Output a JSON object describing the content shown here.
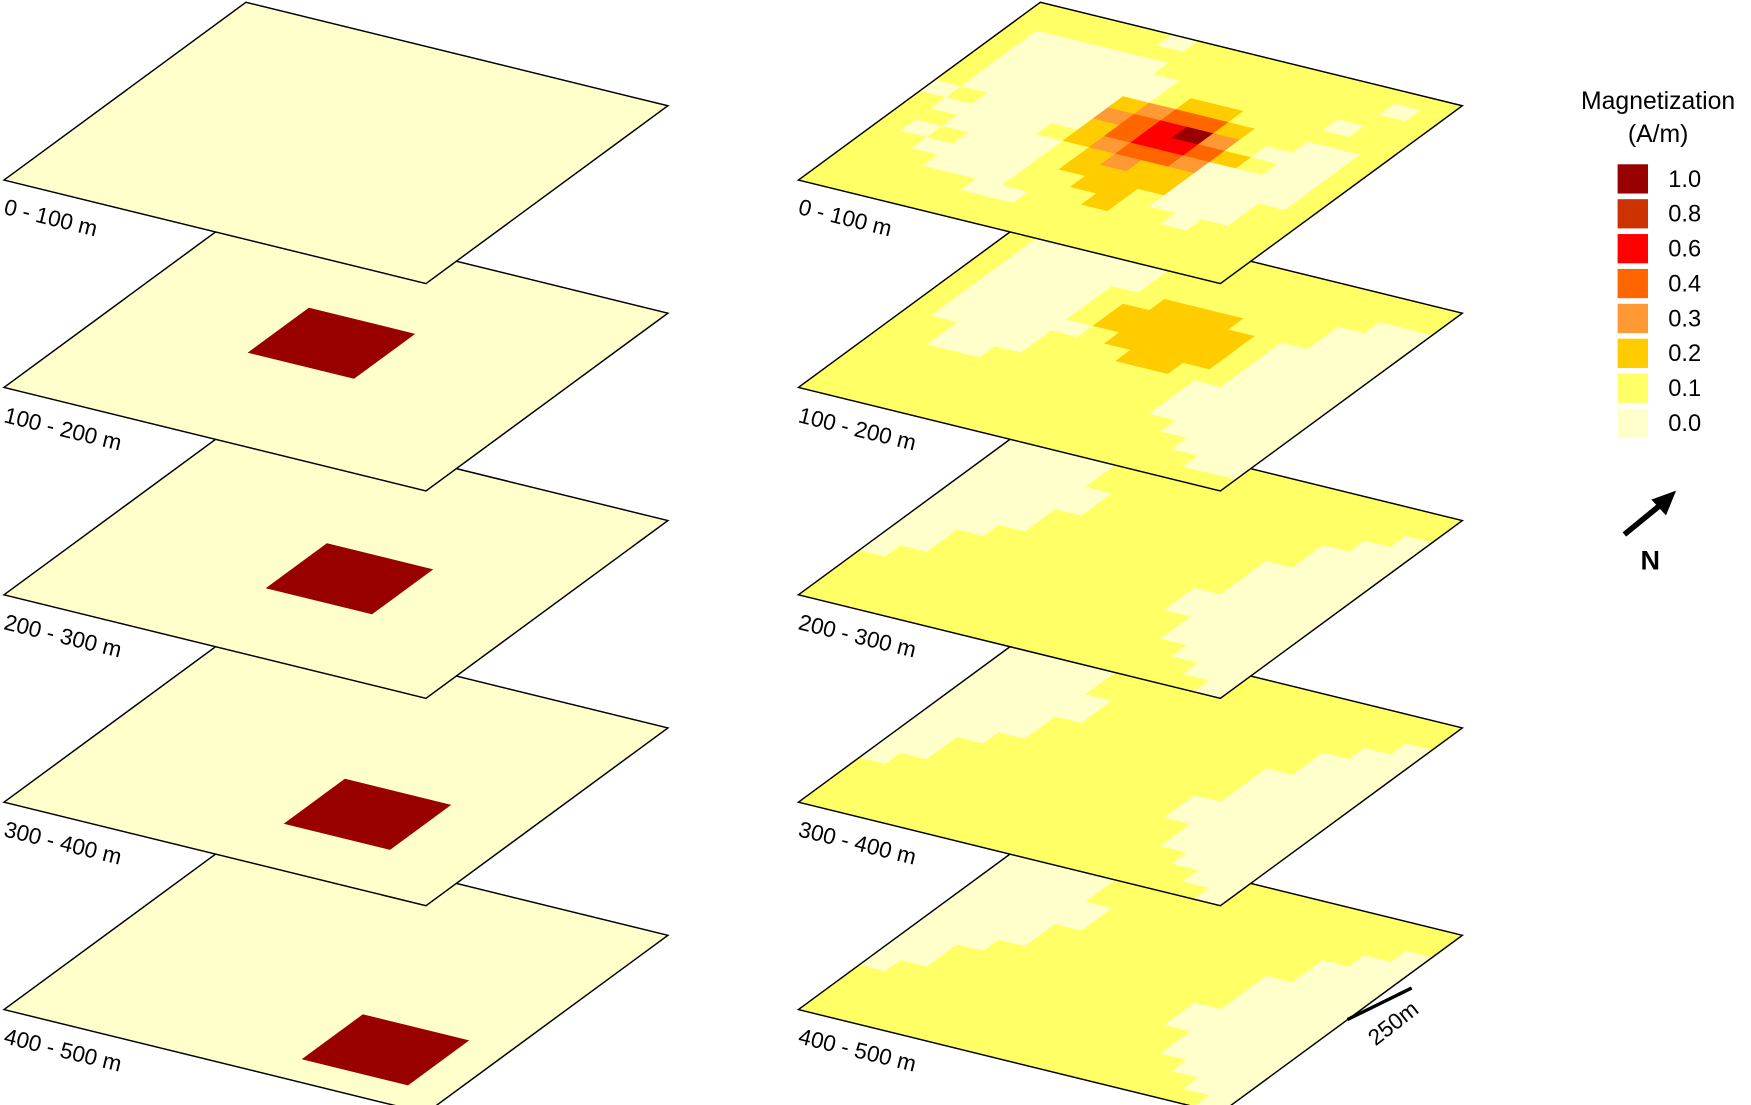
{
  "legend": {
    "title_line1": "Magnetization",
    "title_line2": "(A/m)",
    "entries": [
      {
        "key": "9",
        "label": "1.0",
        "color": "#990000"
      },
      {
        "key": "8",
        "label": "0.8",
        "color": "#cc3300"
      },
      {
        "key": "6",
        "label": "0.6",
        "color": "#ff0000"
      },
      {
        "key": "4",
        "label": "0.4",
        "color": "#ff6600"
      },
      {
        "key": "3",
        "label": "0.3",
        "color": "#ff9933"
      },
      {
        "key": "2",
        "label": "0.2",
        "color": "#ffcc00"
      },
      {
        "key": "1",
        "label": "0.1",
        "color": "#ffff66"
      },
      {
        "key": "0",
        "label": "0.0",
        "color": "#ffffcc"
      }
    ]
  },
  "north_label": "N",
  "scale_bar_label": "250m",
  "outline_color": "#000000",
  "left_model": {
    "grid_size": 20,
    "background_key": "0",
    "layers": [
      {
        "label": "0 - 100 m",
        "block": null
      },
      {
        "label": "100 - 200 m",
        "block": {
          "key": "9",
          "rows": [
            7,
            11
          ],
          "cols": [
            7,
            11
          ]
        }
      },
      {
        "label": "200 - 300 m",
        "block": {
          "key": "9",
          "rows": [
            9,
            13
          ],
          "cols": [
            9,
            13
          ]
        }
      },
      {
        "label": "300 - 400 m",
        "block": {
          "key": "9",
          "rows": [
            11,
            15
          ],
          "cols": [
            11,
            15
          ]
        }
      },
      {
        "label": "400 - 500 m",
        "block": {
          "key": "9",
          "rows": [
            13,
            17
          ],
          "cols": [
            13,
            17
          ]
        }
      }
    ]
  },
  "right_model": {
    "layers": [
      {
        "label": "0 - 100 m",
        "grid": [
          "1111101111111111",
          "1111111111111101",
          "1000001111111111",
          "1000000111111011",
          "1000000122111111",
          "1000002344211001",
          "1000003469310001",
          "0100002466421001",
          "1000012344300001",
          "1100001232200001",
          "1010001222200011",
          "1100001122100011",
          "1110001112110111",
          "1111100111111111",
          "1111111111111111",
          "1111111111111111"
        ]
      },
      {
        "label": "100 - 200 m",
        "grid": [
          "1111111111111111",
          "1000011111111111",
          "1000001111111100",
          "1000001111111000",
          "1000011222111000",
          "1000012222210000",
          "1000012222210000",
          "1000001222210000",
          "1000011122110000",
          "1100011111100000",
          "1100111111100000",
          "1111111111100000",
          "1111111111110000",
          "1111111111111000",
          "1111111111111100",
          "1111111111111111"
        ]
      },
      {
        "label": "200 - 300 m",
        "grid": [
          "1111111111111111",
          "0001111111111111",
          "0000111111111110",
          "0000111111111100",
          "0000011111111000",
          "0000011111111000",
          "0000111111110000",
          "0000111111110000",
          "0001111111110000",
          "0011111111100000",
          "0011111111100000",
          "0111111111110000",
          "1111111111110000",
          "1111111111111000",
          "1111111111111100",
          "1111111111111110"
        ]
      },
      {
        "label": "300 - 400 m",
        "grid": [
          "1111111111111111",
          "0001111111111111",
          "0000111111111110",
          "0000111111111100",
          "0000011111111000",
          "0000011111111000",
          "0000111111110000",
          "0000111111110000",
          "0001111111110000",
          "0011111111100000",
          "0011111111100000",
          "0111111111110000",
          "1111111111110000",
          "1111111111111000",
          "1111111111111100",
          "1111111111111110"
        ]
      },
      {
        "label": "400 - 500 m",
        "grid": [
          "1111111111111111",
          "0001111111111111",
          "0000111111111110",
          "0000111111111100",
          "0000011111111000",
          "0000011111111000",
          "0000111111110000",
          "0000111111110000",
          "0001111111110000",
          "0011111111100000",
          "0011111111100000",
          "0111111111110000",
          "1111111111110000",
          "1111111111111000",
          "1111111111111100",
          "1111111111111110"
        ]
      }
    ]
  }
}
